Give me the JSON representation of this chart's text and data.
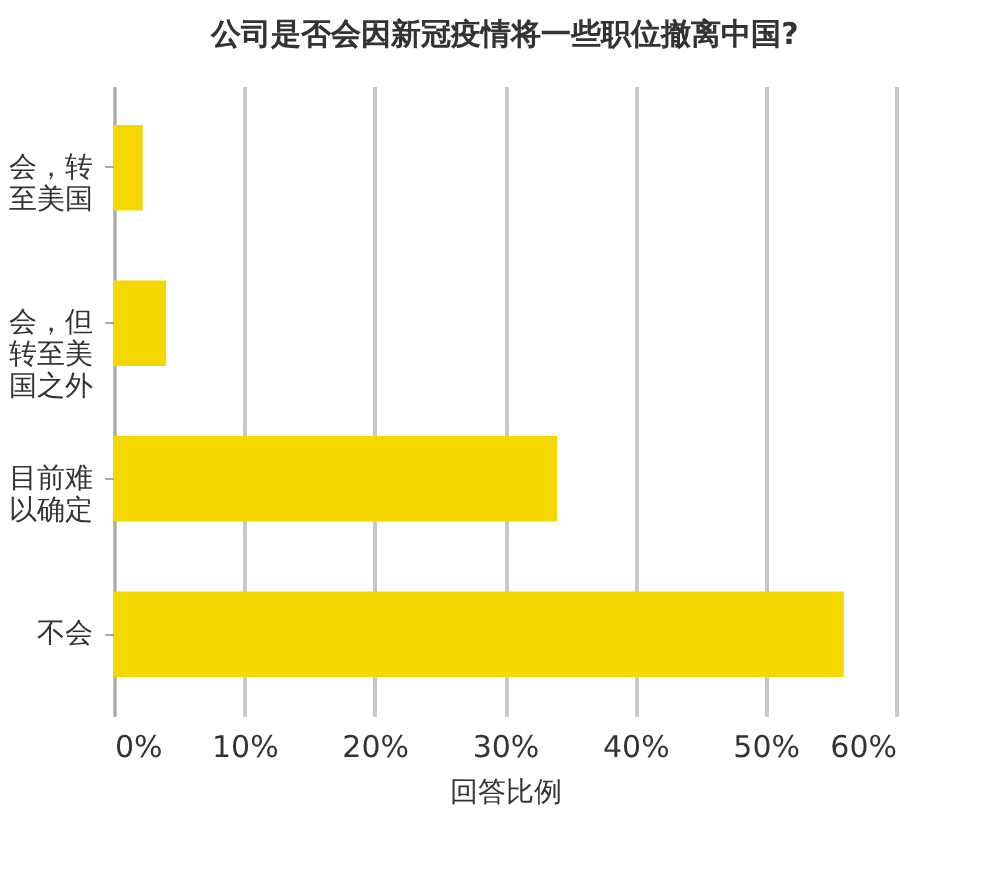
{
  "chart_data": {
    "type": "bar",
    "orientation": "horizontal",
    "title": "公司是否会因新冠疫情将一些职位撤离中国?",
    "xlabel": "回答比例",
    "categories": [
      "会，转至美国",
      "会，但转至美国之外",
      "目前难以确定",
      "不会"
    ],
    "values": [
      2.2,
      4,
      34,
      56
    ],
    "color": "#f5d800",
    "xlim": [
      0,
      60
    ],
    "xticks": [
      {
        "value": 0,
        "label": "0%"
      },
      {
        "value": 10,
        "label": "10%"
      },
      {
        "value": 20,
        "label": "20%"
      },
      {
        "value": 30,
        "label": "30%"
      },
      {
        "value": 40,
        "label": "40%"
      },
      {
        "value": 50,
        "label": "50%"
      },
      {
        "value": 60,
        "label": "60%"
      }
    ],
    "grid": "x"
  }
}
